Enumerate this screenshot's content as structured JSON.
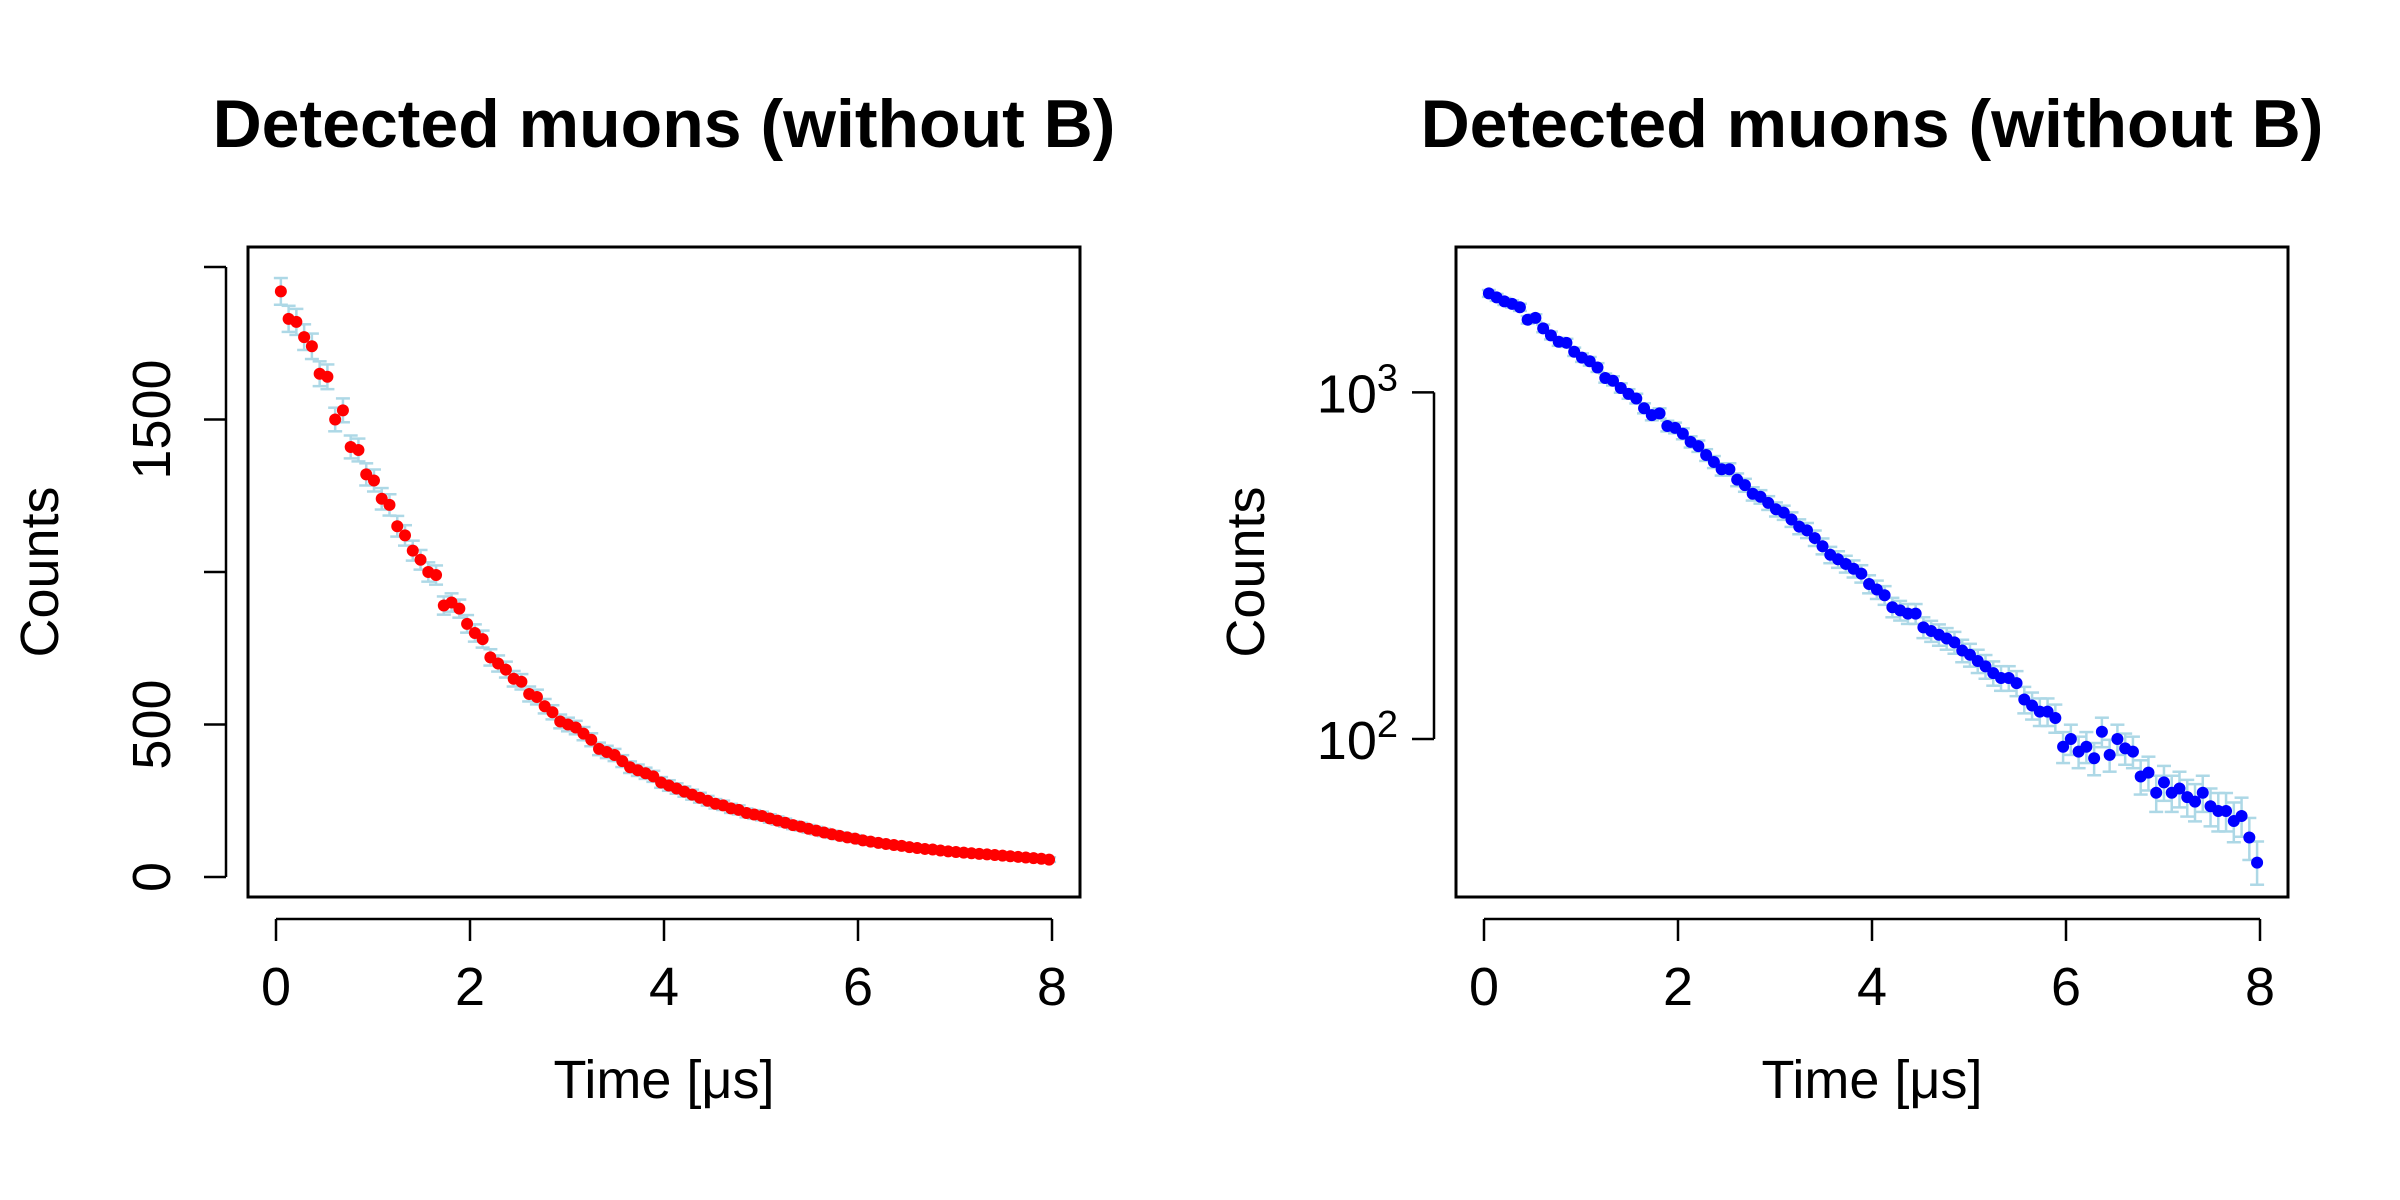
{
  "chart_data": [
    {
      "type": "scatter",
      "title": "Detected muons (without B)",
      "xlabel": "Time [μs]",
      "ylabel": "Counts",
      "yscale": "linear",
      "xlim": [
        0,
        8
      ],
      "ylim": [
        0,
        2000
      ],
      "x_ticks": [
        "0",
        "2",
        "4",
        "6",
        "8"
      ],
      "y_ticks": [
        "0",
        "500",
        "1500"
      ],
      "y_tick_marks": [
        0,
        500,
        1000,
        1500,
        2000
      ],
      "marker_color": "#ff0000",
      "error_bar_color": "#add8e6",
      "grid": false,
      "legend": "none",
      "series": [
        {
          "x": [
            0.05,
            0.13,
            0.21,
            0.29,
            0.37,
            0.45,
            0.53,
            0.61,
            0.69,
            0.77,
            0.85,
            0.93,
            1.01,
            1.09,
            1.17,
            1.25,
            1.33,
            1.41,
            1.49,
            1.57,
            1.65,
            1.73,
            1.81,
            1.89,
            1.97,
            2.05,
            2.13,
            2.21,
            2.29,
            2.37,
            2.45,
            2.53,
            2.61,
            2.69,
            2.77,
            2.85,
            2.93,
            3.01,
            3.09,
            3.17,
            3.25,
            3.33,
            3.41,
            3.49,
            3.57,
            3.65,
            3.73,
            3.81,
            3.89,
            3.97,
            4.05,
            4.13,
            4.21,
            4.29,
            4.37,
            4.45,
            4.53,
            4.61,
            4.69,
            4.77,
            4.85,
            4.93,
            5.01,
            5.09,
            5.17,
            5.25,
            5.33,
            5.41,
            5.49,
            5.57,
            5.65,
            5.73,
            5.81,
            5.89,
            5.97,
            6.05,
            6.13,
            6.21,
            6.29,
            6.37,
            6.45,
            6.53,
            6.61,
            6.69,
            6.77,
            6.85,
            6.93,
            7.01,
            7.09,
            7.17,
            7.25,
            7.33,
            7.41,
            7.49,
            7.57,
            7.65,
            7.73,
            7.81,
            7.89,
            7.97
          ],
          "y": [
            1920,
            1830,
            1820,
            1770,
            1740,
            1650,
            1640,
            1500,
            1530,
            1410,
            1400,
            1320,
            1300,
            1240,
            1220,
            1150,
            1120,
            1070,
            1040,
            1000,
            990,
            890,
            900,
            880,
            830,
            800,
            780,
            720,
            700,
            680,
            650,
            640,
            600,
            590,
            560,
            540,
            510,
            500,
            490,
            470,
            450,
            420,
            410,
            400,
            380,
            360,
            350,
            340,
            330,
            310,
            300,
            290,
            280,
            270,
            260,
            250,
            240,
            235,
            225,
            220,
            210,
            205,
            200,
            192,
            185,
            178,
            170,
            165,
            158,
            152,
            146,
            140,
            135,
            130,
            126,
            120,
            116,
            112,
            108,
            105,
            102,
            98,
            95,
            92,
            90,
            87,
            84,
            82,
            80,
            78,
            76,
            74,
            72,
            70,
            68,
            66,
            64,
            62,
            60,
            57
          ]
        }
      ]
    },
    {
      "type": "scatter",
      "title": "Detected muons (without B)",
      "xlabel": "Time [μs]",
      "ylabel": "Counts",
      "yscale": "log",
      "xlim": [
        0,
        8
      ],
      "ylim": [
        40,
        2300
      ],
      "x_ticks": [
        "0",
        "2",
        "4",
        "6",
        "8"
      ],
      "y_ticks": [
        {
          "base": "10",
          "exponent": "2",
          "value": 100
        },
        {
          "base": "10",
          "exponent": "3",
          "value": 1000
        }
      ],
      "marker_color": "#0000ff",
      "error_bar_color": "#add8e6",
      "grid": false,
      "legend": "none",
      "series": [
        {
          "x": [
            0.05,
            0.13,
            0.21,
            0.29,
            0.37,
            0.45,
            0.53,
            0.61,
            0.69,
            0.77,
            0.85,
            0.93,
            1.01,
            1.09,
            1.17,
            1.25,
            1.33,
            1.41,
            1.49,
            1.57,
            1.65,
            1.73,
            1.81,
            1.89,
            1.97,
            2.05,
            2.13,
            2.21,
            2.29,
            2.37,
            2.45,
            2.53,
            2.61,
            2.69,
            2.77,
            2.85,
            2.93,
            3.01,
            3.09,
            3.17,
            3.25,
            3.33,
            3.41,
            3.49,
            3.57,
            3.65,
            3.73,
            3.81,
            3.89,
            3.97,
            4.05,
            4.13,
            4.21,
            4.29,
            4.37,
            4.45,
            4.53,
            4.61,
            4.69,
            4.77,
            4.85,
            4.93,
            5.01,
            5.09,
            5.17,
            5.25,
            5.33,
            5.41,
            5.49,
            5.57,
            5.65,
            5.73,
            5.81,
            5.89,
            5.97,
            6.05,
            6.13,
            6.21,
            6.29,
            6.37,
            6.45,
            6.53,
            6.61,
            6.69,
            6.77,
            6.85,
            6.93,
            7.01,
            7.09,
            7.17,
            7.25,
            7.33,
            7.41,
            7.49,
            7.57,
            7.65,
            7.73,
            7.81,
            7.89,
            7.97
          ],
          "y": [
            1930,
            1880,
            1830,
            1800,
            1760,
            1620,
            1640,
            1530,
            1460,
            1400,
            1390,
            1310,
            1260,
            1230,
            1180,
            1100,
            1080,
            1030,
            990,
            960,
            900,
            860,
            870,
            800,
            790,
            760,
            720,
            700,
            660,
            630,
            600,
            600,
            560,
            540,
            510,
            500,
            480,
            460,
            450,
            430,
            410,
            400,
            380,
            360,
            340,
            330,
            320,
            310,
            300,
            280,
            270,
            260,
            240,
            235,
            230,
            230,
            210,
            205,
            200,
            195,
            190,
            180,
            175,
            168,
            162,
            155,
            150,
            150,
            145,
            130,
            125,
            120,
            120,
            115,
            95,
            100,
            92,
            95,
            88,
            105,
            90,
            100,
            94,
            92,
            78,
            80,
            70,
            75,
            70,
            72,
            68,
            66,
            70,
            64,
            62,
            62,
            58,
            60,
            52,
            44
          ]
        }
      ]
    }
  ]
}
